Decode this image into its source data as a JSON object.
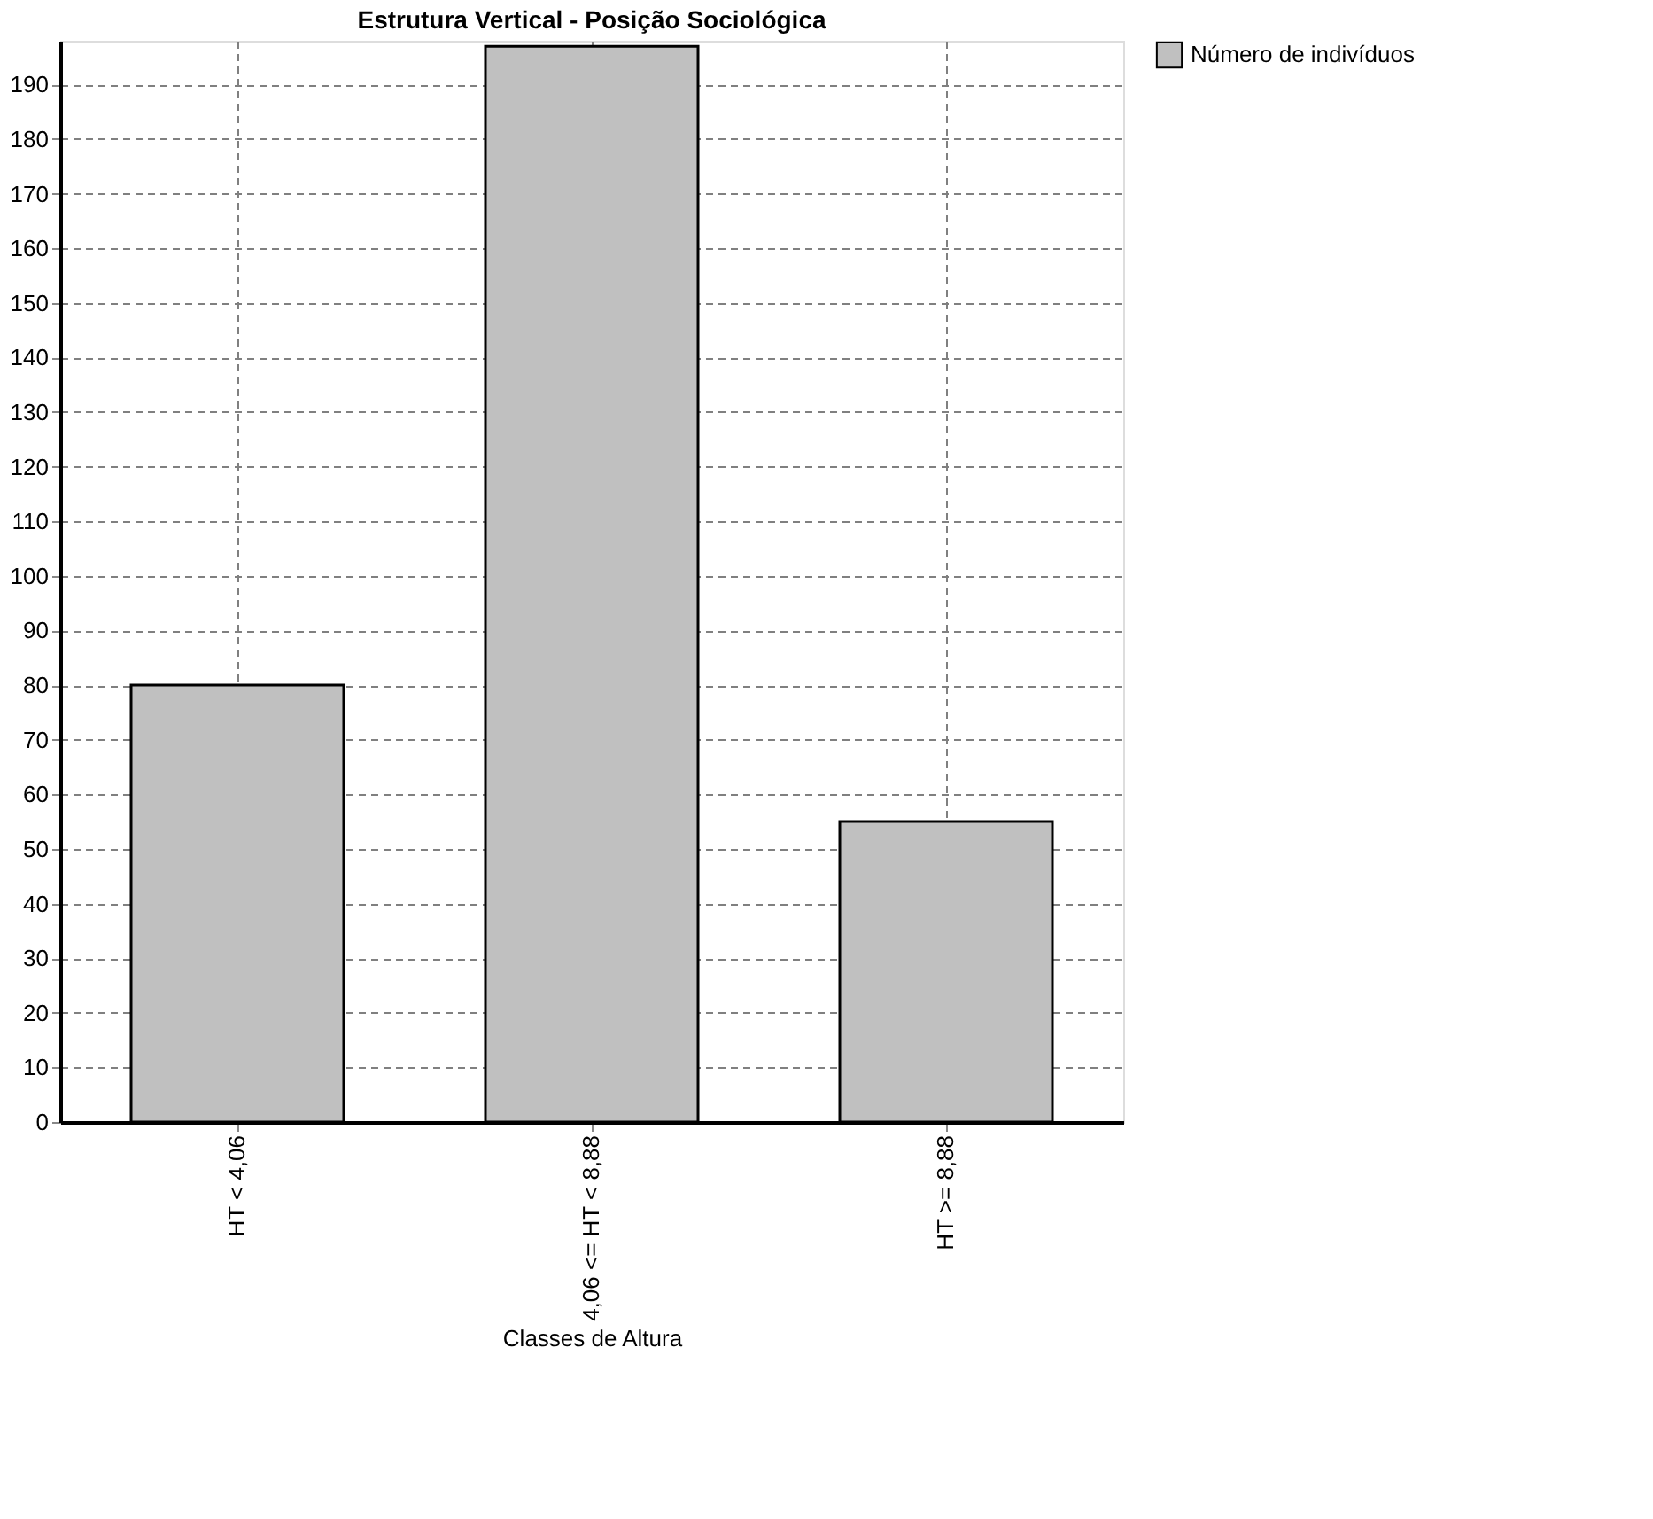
{
  "chart_data": {
    "type": "bar",
    "title": "Estrutura Vertical - Posição Sociológica",
    "xlabel": "Classes de Altura",
    "categories": [
      "HT < 4,06",
      "4,06 <= HT < 8,88",
      "HT >= 8,88"
    ],
    "series": [
      {
        "name": "Número de indivíduos",
        "color": "#c0c0c0",
        "values": [
          80,
          197,
          55
        ]
      }
    ],
    "ylim": [
      0,
      198
    ],
    "yticks": [
      0,
      10,
      20,
      30,
      40,
      50,
      60,
      70,
      80,
      90,
      100,
      110,
      120,
      130,
      140,
      150,
      160,
      170,
      180,
      190
    ],
    "grid": true,
    "legend": "top right"
  }
}
